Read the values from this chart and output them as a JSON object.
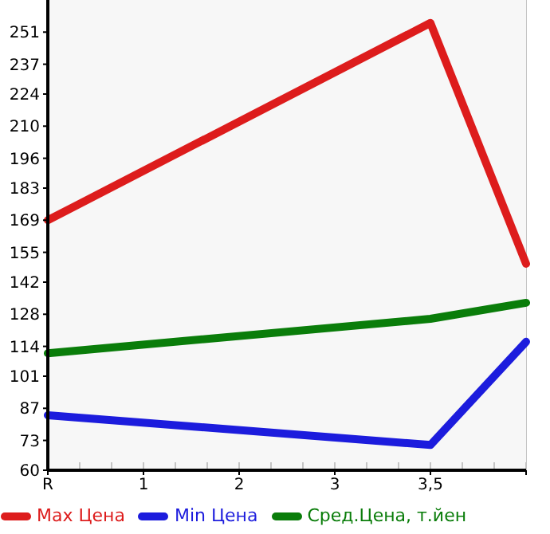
{
  "chart_data": {
    "type": "line",
    "categories": [
      "R",
      "1",
      "2",
      "3",
      "3,5",
      null
    ],
    "series": [
      {
        "name": "Max Цена",
        "color": "#dd1c1c",
        "values": [
          169,
          null,
          null,
          null,
          255,
          150
        ]
      },
      {
        "name": "Min Цена",
        "color": "#1c1cdd",
        "values": [
          84,
          null,
          null,
          null,
          71,
          116
        ]
      },
      {
        "name": "Сред.Цена, т.йен",
        "color": "#0a7d0a",
        "values": [
          111,
          null,
          null,
          null,
          126,
          133
        ]
      }
    ],
    "ylim": [
      60,
      265
    ],
    "yticks": [
      60,
      73,
      87,
      101,
      114,
      128,
      142,
      155,
      169,
      183,
      196,
      210,
      224,
      237,
      251
    ],
    "grid": true,
    "legend": "bottom",
    "marker": "none",
    "line_style": "solid"
  }
}
